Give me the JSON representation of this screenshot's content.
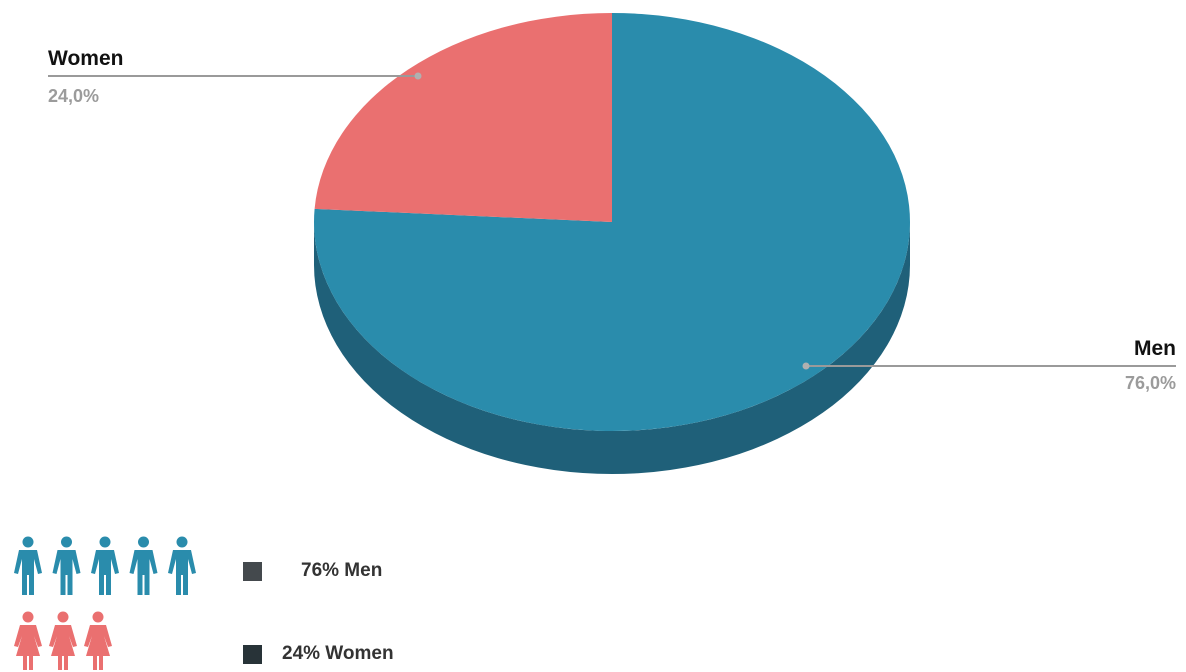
{
  "chart_data": {
    "type": "pie",
    "style": "3d",
    "slices": [
      {
        "label": "Men",
        "value": 76.0,
        "display": "76,0%",
        "color": "#2a8cac",
        "side_color": "#1f6079"
      },
      {
        "label": "Women",
        "value": 24.0,
        "display": "24,0%",
        "color": "#ea7070",
        "side_color": "#b85656"
      }
    ]
  },
  "legend": {
    "items": [
      {
        "label": "76% Men",
        "swatch_color": "#44494d",
        "icon": "man-icon",
        "icon_count": 5,
        "icon_color": "#2a8cac"
      },
      {
        "label": "24% Women",
        "swatch_color": "#283338",
        "icon": "woman-icon",
        "icon_count": 3,
        "icon_color": "#ea7070"
      }
    ]
  }
}
